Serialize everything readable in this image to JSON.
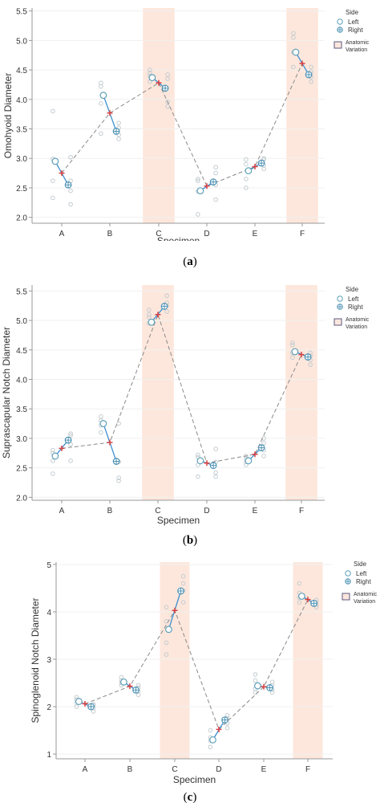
{
  "figure": {
    "captions": [
      {
        "open": "(",
        "letter": "a",
        "close": ")"
      },
      {
        "open": "(",
        "letter": "b",
        "close": ")"
      },
      {
        "open": "(",
        "letter": "c",
        "close": ")"
      }
    ]
  },
  "legend": {
    "title": "Side",
    "left_label": "Left",
    "right_label": "Right",
    "variation_line1": "Anatomic",
    "variation_line2": "Variation"
  },
  "colors": {
    "left": "#5fa0b8",
    "right": "#4f93b5",
    "dots": "#c4ccd0",
    "connector": "#3d8fd0",
    "trend": "#8a8a8a",
    "mean_marker": "#d94040",
    "shade": "#fde7dc",
    "axis": "#999999",
    "grid": "#f0f0f0"
  },
  "chart_data": [
    {
      "type": "scatter",
      "title": "",
      "xlabel": "Specimen",
      "ylabel": "Omohyoid Diameter",
      "categories": [
        "A",
        "B",
        "C",
        "D",
        "E",
        "F"
      ],
      "ylim": [
        1.9,
        5.55
      ],
      "yticks": [
        "2.0",
        "2.5",
        "3.0",
        "3.5",
        "4.0",
        "4.5",
        "5.0",
        "5.5"
      ],
      "highlight": [
        "C",
        "F"
      ],
      "series": [
        {
          "name": "Left",
          "values": [
            2.95,
            4.07,
            4.37,
            2.45,
            2.79,
            4.8
          ],
          "points": [
            [
              2.33,
              2.62,
              2.99,
              3.8
            ],
            [
              3.42,
              3.93,
              4.22,
              4.28
            ],
            [
              4.3,
              4.4,
              4.45,
              4.5
            ],
            [
              2.05,
              2.44,
              2.62,
              2.65
            ],
            [
              2.5,
              2.65,
              2.9,
              2.98
            ],
            [
              4.55,
              4.8,
              5.05,
              5.12
            ]
          ]
        },
        {
          "name": "Right",
          "values": [
            2.55,
            3.46,
            4.19,
            2.6,
            2.92,
            4.42
          ],
          "points": [
            [
              2.22,
              2.45,
              2.62,
              3.02
            ],
            [
              3.33,
              3.4,
              3.52,
              3.6
            ],
            [
              3.88,
              3.96,
              4.35,
              4.42
            ],
            [
              2.3,
              2.55,
              2.75,
              2.85
            ],
            [
              2.82,
              2.88,
              2.98,
              3.0
            ],
            [
              4.3,
              4.38,
              4.47,
              4.55
            ]
          ]
        }
      ],
      "mean": [
        2.75,
        3.77,
        4.28,
        2.53,
        2.86,
        4.61
      ]
    },
    {
      "type": "scatter",
      "title": "",
      "xlabel": "Specimen",
      "ylabel": "Suprascapular Notch Diameter",
      "categories": [
        "A",
        "B",
        "C",
        "D",
        "E",
        "F"
      ],
      "ylim": [
        1.95,
        5.6
      ],
      "yticks": [
        "2.0",
        "2.5",
        "3.0",
        "3.5",
        "4.0",
        "4.5",
        "5.0",
        "5.5"
      ],
      "highlight": [
        "C",
        "F"
      ],
      "series": [
        {
          "name": "Left",
          "values": [
            2.7,
            3.25,
            4.97,
            2.62,
            2.62,
            4.47
          ],
          "points": [
            [
              2.4,
              2.62,
              2.75,
              2.8
            ],
            [
              3.1,
              3.22,
              3.3,
              3.37
            ],
            [
              4.95,
              5.05,
              5.1,
              5.18
            ],
            [
              2.35,
              2.55,
              2.68,
              2.72
            ],
            [
              2.55,
              2.6,
              2.66,
              2.7
            ],
            [
              4.37,
              4.45,
              4.58,
              4.62
            ]
          ]
        },
        {
          "name": "Right",
          "values": [
            2.97,
            2.61,
            5.24,
            2.54,
            2.84,
            4.38
          ],
          "points": [
            [
              2.62,
              2.9,
              3.05,
              3.08
            ],
            [
              2.28,
              2.33,
              2.6,
              3.25
            ],
            [
              5.15,
              5.25,
              5.3,
              5.42
            ],
            [
              2.35,
              2.42,
              2.6,
              2.82
            ],
            [
              2.7,
              2.8,
              2.92,
              3.0
            ],
            [
              4.25,
              4.33,
              4.4,
              4.45
            ]
          ]
        }
      ],
      "mean": [
        2.83,
        2.93,
        5.1,
        2.58,
        2.73,
        4.42
      ]
    },
    {
      "type": "scatter",
      "title": "",
      "xlabel": "Specimen",
      "ylabel": "Spinoglenoid Notch Diameter",
      "categories": [
        "A",
        "B",
        "C",
        "D",
        "E",
        "F"
      ],
      "ylim": [
        0.9,
        5.05
      ],
      "yticks": [
        "1",
        "2",
        "3",
        "4",
        "5"
      ],
      "highlight": [
        "C",
        "F"
      ],
      "series": [
        {
          "name": "Left",
          "values": [
            2.11,
            2.52,
            3.63,
            1.3,
            2.44,
            4.33
          ],
          "points": [
            [
              2.0,
              2.08,
              2.15,
              2.2
            ],
            [
              2.45,
              2.5,
              2.55,
              2.62
            ],
            [
              3.1,
              3.35,
              3.8,
              4.1
            ],
            [
              1.15,
              1.28,
              1.35,
              1.5
            ],
            [
              2.3,
              2.38,
              2.55,
              2.68
            ],
            [
              4.2,
              4.3,
              4.4,
              4.6
            ]
          ]
        },
        {
          "name": "Right",
          "values": [
            2.0,
            2.35,
            4.44,
            1.72,
            2.4,
            4.18
          ],
          "points": [
            [
              1.9,
              1.97,
              2.03,
              2.05
            ],
            [
              2.25,
              2.32,
              2.4,
              2.45
            ],
            [
              4.2,
              4.45,
              4.6,
              4.75
            ],
            [
              1.55,
              1.65,
              1.75,
              1.82
            ],
            [
              2.3,
              2.36,
              2.45,
              2.52
            ],
            [
              4.1,
              4.15,
              4.2,
              4.25
            ]
          ]
        }
      ],
      "mean": [
        2.06,
        2.43,
        4.03,
        1.52,
        2.42,
        4.26
      ]
    }
  ]
}
